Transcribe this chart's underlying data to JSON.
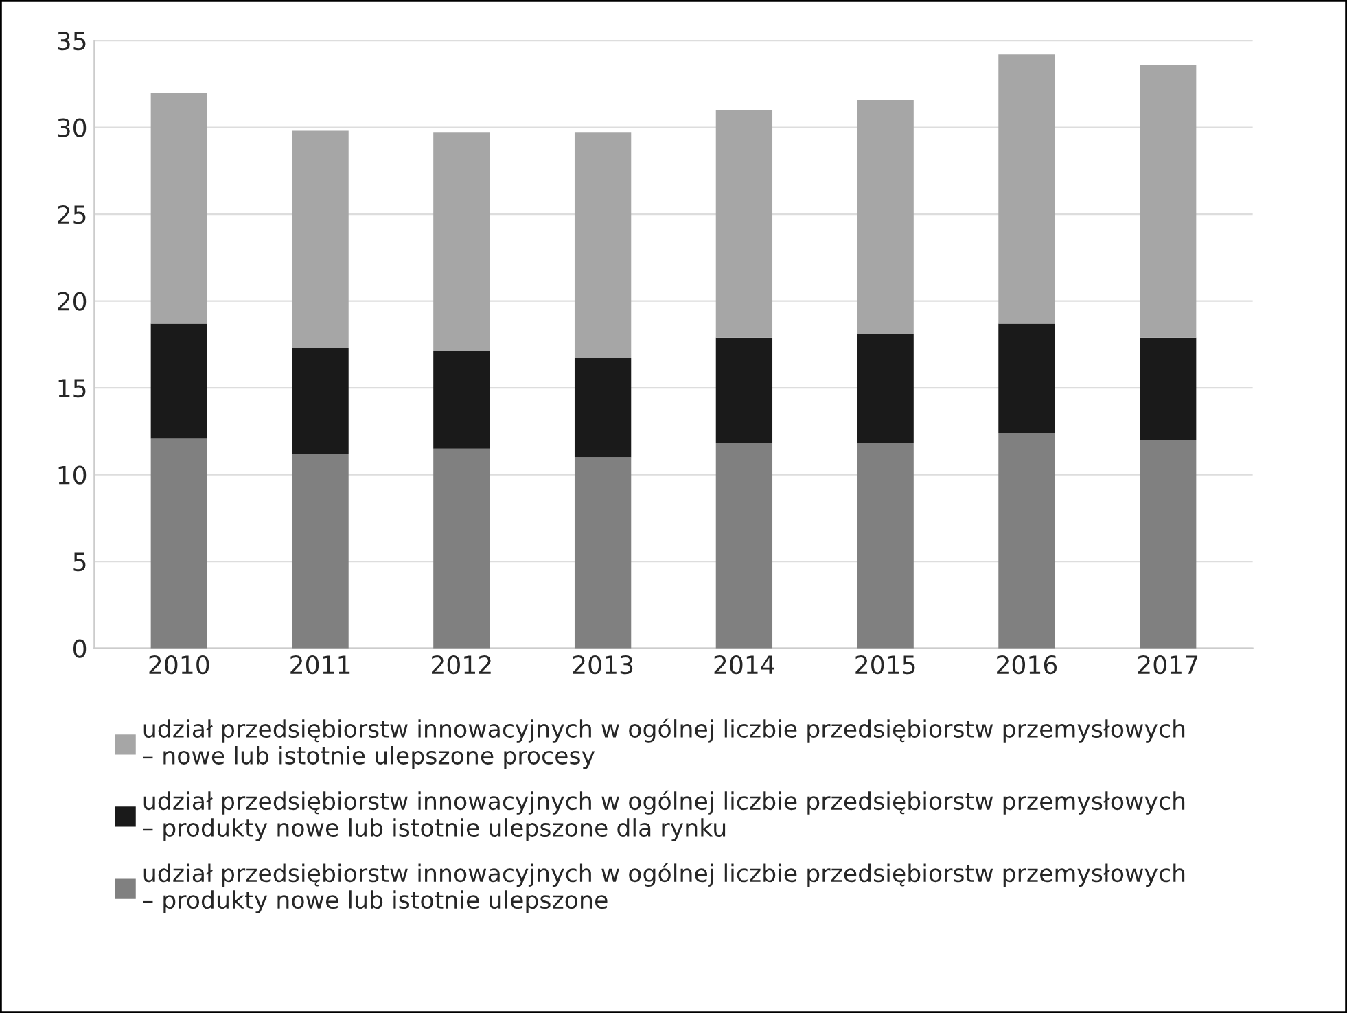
{
  "chart_data": {
    "type": "bar",
    "stacked": true,
    "categories": [
      "2010",
      "2011",
      "2012",
      "2013",
      "2014",
      "2015",
      "2016",
      "2017"
    ],
    "series": [
      {
        "name": "udział przedsiębiorstw innowacyjnych w ogólnej liczbie przedsiębiorstw przemysłowych\n– produkty nowe lub istotnie ulepszone",
        "color": "#808080",
        "values": [
          12.1,
          11.2,
          11.5,
          11.0,
          11.8,
          11.8,
          12.4,
          12.0
        ]
      },
      {
        "name": "udział przedsiębiorstw innowacyjnych w ogólnej liczbie przedsiębiorstw przemysłowych\n– produkty nowe lub istotnie ulepszone dla rynku",
        "color": "#1a1a1a",
        "values": [
          6.6,
          6.1,
          5.6,
          5.7,
          6.1,
          6.3,
          6.3,
          5.9
        ]
      },
      {
        "name": "udział przedsiębiorstw innowacyjnych w ogólnej liczbie przedsiębiorstw przemysłowych\n– nowe lub istotnie ulepszone procesy",
        "color": "#a6a6a6",
        "values": [
          13.3,
          12.5,
          12.6,
          13.0,
          13.1,
          13.5,
          15.5,
          15.7
        ]
      }
    ],
    "ylim": [
      0,
      35
    ],
    "yticks": [
      0,
      5,
      10,
      15,
      20,
      25,
      30,
      35
    ],
    "grid": "y",
    "legend": "bottom"
  }
}
